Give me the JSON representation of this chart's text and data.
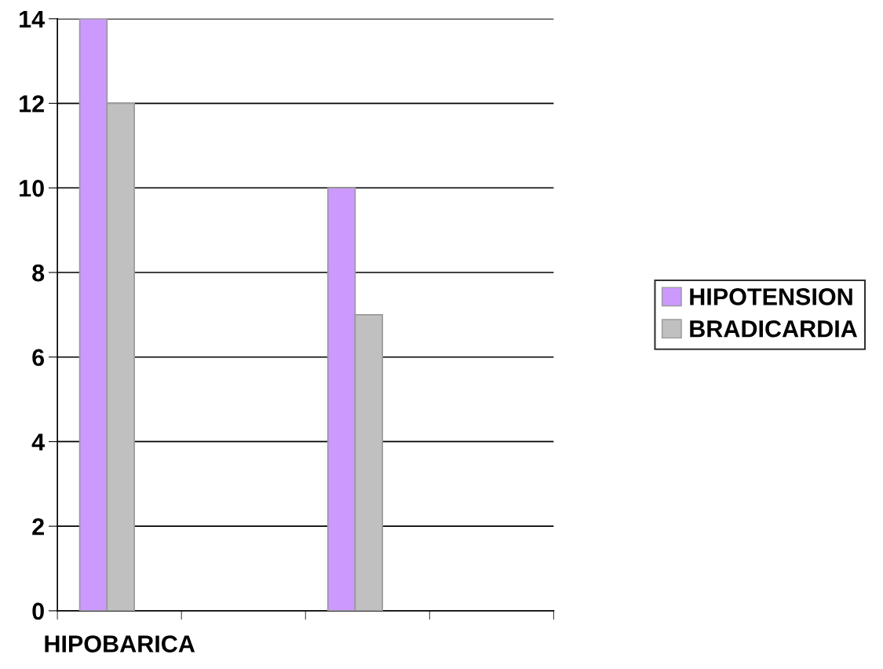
{
  "chart_data": {
    "type": "bar",
    "categories": [
      "HIPOBARICA",
      null,
      null,
      null
    ],
    "series": [
      {
        "name": "HIPOTENSION",
        "color": "#cc99ff",
        "values": [
          14,
          null,
          10,
          null
        ]
      },
      {
        "name": "BRADICARDIA",
        "color": "#c0c0c0",
        "values": [
          12,
          null,
          7,
          null
        ]
      }
    ],
    "ylim": [
      0,
      14
    ],
    "yticks": [
      0,
      2,
      4,
      6,
      8,
      10,
      12,
      14
    ],
    "grid": "y",
    "legend": "right"
  }
}
